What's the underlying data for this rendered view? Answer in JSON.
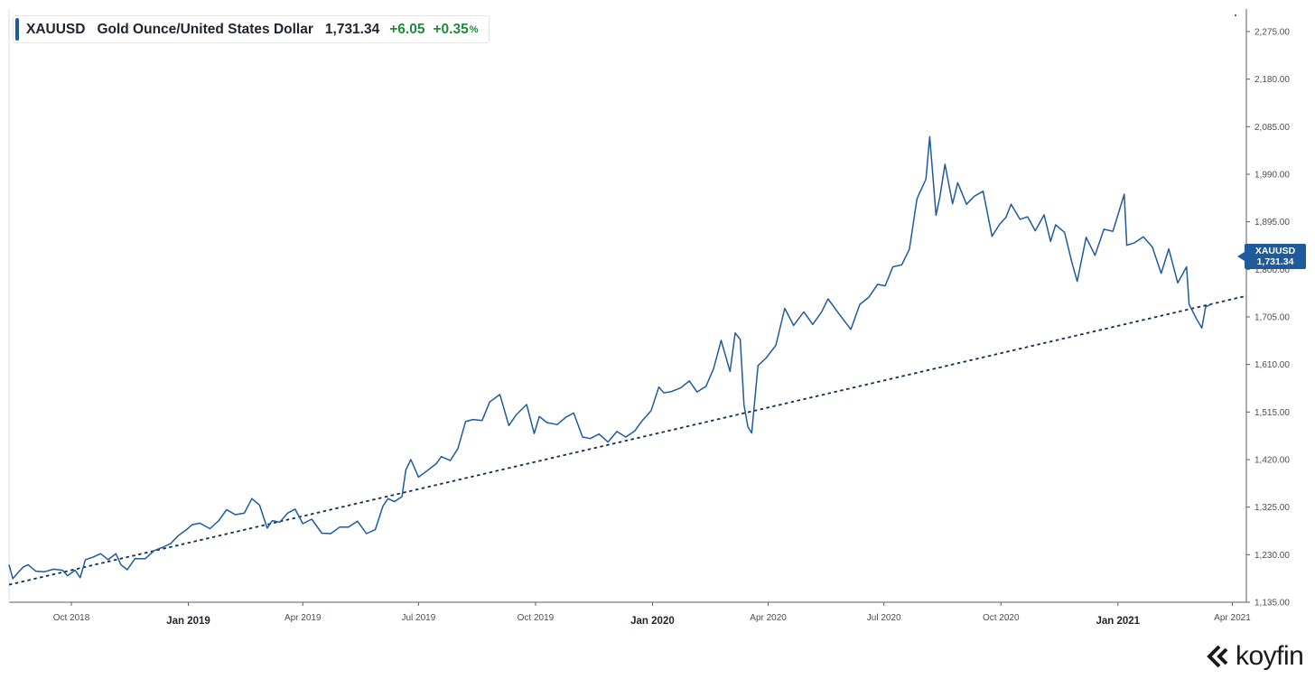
{
  "legend": {
    "ticker": "XAUUSD",
    "name": "Gold Ounce/United States Dollar",
    "price": "1,731.34",
    "change": "+6.05",
    "change_pct": "+0.35",
    "pct_sign": "%"
  },
  "badge": {
    "ticker": "XAUUSD",
    "price": "1,731.34"
  },
  "brand": {
    "name": "koyfin"
  },
  "colors": {
    "line": "#1f5a9c",
    "trend": "#0f2f4f",
    "positive": "#1f8a3a",
    "badge": "#1f5a9c"
  },
  "chart_data": {
    "type": "line",
    "grid": false,
    "ylim": [
      1135,
      2320
    ],
    "x_range": [
      "2018-08-13",
      "2021-04-12"
    ],
    "x_ticks": [
      {
        "date": "2018-10-01",
        "label": "Oct 2018",
        "major": false
      },
      {
        "date": "2019-01-01",
        "label": "Jan 2019",
        "major": true
      },
      {
        "date": "2019-04-01",
        "label": "Apr 2019",
        "major": false
      },
      {
        "date": "2019-07-01",
        "label": "Jul 2019",
        "major": false
      },
      {
        "date": "2019-10-01",
        "label": "Oct 2019",
        "major": false
      },
      {
        "date": "2020-01-01",
        "label": "Jan 2020",
        "major": true
      },
      {
        "date": "2020-04-01",
        "label": "Apr 2020",
        "major": false
      },
      {
        "date": "2020-07-01",
        "label": "Jul 2020",
        "major": false
      },
      {
        "date": "2020-10-01",
        "label": "Oct 2020",
        "major": false
      },
      {
        "date": "2021-01-01",
        "label": "Jan 2021",
        "major": true
      },
      {
        "date": "2021-04-01",
        "label": "Apr 2021",
        "major": false
      }
    ],
    "y_ticks": [
      {
        "value": 1135,
        "label": "1,135.00"
      },
      {
        "value": 1230,
        "label": "1,230.00"
      },
      {
        "value": 1325,
        "label": "1,325.00"
      },
      {
        "value": 1420,
        "label": "1,420.00"
      },
      {
        "value": 1515,
        "label": "1,515.00"
      },
      {
        "value": 1610,
        "label": "1,610.00"
      },
      {
        "value": 1705,
        "label": "1,705.00"
      },
      {
        "value": 1800,
        "label": "1,800.00"
      },
      {
        "value": 1895,
        "label": "1,895.00"
      },
      {
        "value": 1990,
        "label": "1,990.00"
      },
      {
        "value": 2085,
        "label": "2,085.00"
      },
      {
        "value": 2180,
        "label": "2,180.00"
      },
      {
        "value": 2275,
        "label": "2,275.00"
      }
    ],
    "series": [
      {
        "ticker": "XAUUSD",
        "points": [
          [
            "2018-08-13",
            1210
          ],
          [
            "2018-08-16",
            1182
          ],
          [
            "2018-08-20",
            1194
          ],
          [
            "2018-08-24",
            1205
          ],
          [
            "2018-08-28",
            1210
          ],
          [
            "2018-09-03",
            1197
          ],
          [
            "2018-09-10",
            1196
          ],
          [
            "2018-09-17",
            1201
          ],
          [
            "2018-09-24",
            1199
          ],
          [
            "2018-09-28",
            1188
          ],
          [
            "2018-10-04",
            1199
          ],
          [
            "2018-10-08",
            1184
          ],
          [
            "2018-10-12",
            1220
          ],
          [
            "2018-10-18",
            1225
          ],
          [
            "2018-10-24",
            1232
          ],
          [
            "2018-10-30",
            1220
          ],
          [
            "2018-11-05",
            1232
          ],
          [
            "2018-11-09",
            1210
          ],
          [
            "2018-11-14",
            1200
          ],
          [
            "2018-11-20",
            1222
          ],
          [
            "2018-11-28",
            1222
          ],
          [
            "2018-12-05",
            1238
          ],
          [
            "2018-12-12",
            1245
          ],
          [
            "2018-12-18",
            1252
          ],
          [
            "2018-12-24",
            1268
          ],
          [
            "2018-12-31",
            1281
          ],
          [
            "2019-01-04",
            1290
          ],
          [
            "2019-01-10",
            1293
          ],
          [
            "2019-01-18",
            1282
          ],
          [
            "2019-01-25",
            1298
          ],
          [
            "2019-01-31",
            1320
          ],
          [
            "2019-02-07",
            1310
          ],
          [
            "2019-02-14",
            1313
          ],
          [
            "2019-02-20",
            1342
          ],
          [
            "2019-02-26",
            1329
          ],
          [
            "2019-03-04",
            1283
          ],
          [
            "2019-03-08",
            1298
          ],
          [
            "2019-03-14",
            1295
          ],
          [
            "2019-03-20",
            1313
          ],
          [
            "2019-03-26",
            1321
          ],
          [
            "2019-04-01",
            1292
          ],
          [
            "2019-04-08",
            1301
          ],
          [
            "2019-04-16",
            1273
          ],
          [
            "2019-04-23",
            1272
          ],
          [
            "2019-04-30",
            1285
          ],
          [
            "2019-05-07",
            1285
          ],
          [
            "2019-05-14",
            1297
          ],
          [
            "2019-05-21",
            1272
          ],
          [
            "2019-05-28",
            1280
          ],
          [
            "2019-06-03",
            1327
          ],
          [
            "2019-06-07",
            1342
          ],
          [
            "2019-06-12",
            1336
          ],
          [
            "2019-06-18",
            1346
          ],
          [
            "2019-06-21",
            1399
          ],
          [
            "2019-06-25",
            1420
          ],
          [
            "2019-07-01",
            1385
          ],
          [
            "2019-07-08",
            1398
          ],
          [
            "2019-07-15",
            1412
          ],
          [
            "2019-07-19",
            1426
          ],
          [
            "2019-07-26",
            1418
          ],
          [
            "2019-08-01",
            1442
          ],
          [
            "2019-08-07",
            1496
          ],
          [
            "2019-08-13",
            1500
          ],
          [
            "2019-08-20",
            1498
          ],
          [
            "2019-08-26",
            1535
          ],
          [
            "2019-09-03",
            1550
          ],
          [
            "2019-09-10",
            1488
          ],
          [
            "2019-09-16",
            1510
          ],
          [
            "2019-09-24",
            1530
          ],
          [
            "2019-09-30",
            1472
          ],
          [
            "2019-10-04",
            1506
          ],
          [
            "2019-10-10",
            1494
          ],
          [
            "2019-10-18",
            1490
          ],
          [
            "2019-10-25",
            1505
          ],
          [
            "2019-10-31",
            1513
          ],
          [
            "2019-11-07",
            1465
          ],
          [
            "2019-11-13",
            1462
          ],
          [
            "2019-11-20",
            1471
          ],
          [
            "2019-11-27",
            1455
          ],
          [
            "2019-12-04",
            1476
          ],
          [
            "2019-12-11",
            1465
          ],
          [
            "2019-12-18",
            1477
          ],
          [
            "2019-12-24",
            1498
          ],
          [
            "2019-12-31",
            1518
          ],
          [
            "2020-01-06",
            1565
          ],
          [
            "2020-01-10",
            1553
          ],
          [
            "2020-01-16",
            1556
          ],
          [
            "2020-01-23",
            1563
          ],
          [
            "2020-01-30",
            1577
          ],
          [
            "2020-02-05",
            1555
          ],
          [
            "2020-02-12",
            1566
          ],
          [
            "2020-02-18",
            1601
          ],
          [
            "2020-02-24",
            1658
          ],
          [
            "2020-03-02",
            1596
          ],
          [
            "2020-03-06",
            1673
          ],
          [
            "2020-03-10",
            1660
          ],
          [
            "2020-03-13",
            1529
          ],
          [
            "2020-03-16",
            1485
          ],
          [
            "2020-03-19",
            1473
          ],
          [
            "2020-03-24",
            1608
          ],
          [
            "2020-03-30",
            1622
          ],
          [
            "2020-04-07",
            1648
          ],
          [
            "2020-04-14",
            1722
          ],
          [
            "2020-04-21",
            1688
          ],
          [
            "2020-04-29",
            1715
          ],
          [
            "2020-05-06",
            1690
          ],
          [
            "2020-05-13",
            1715
          ],
          [
            "2020-05-18",
            1741
          ],
          [
            "2020-05-27",
            1710
          ],
          [
            "2020-06-05",
            1680
          ],
          [
            "2020-06-12",
            1730
          ],
          [
            "2020-06-19",
            1744
          ],
          [
            "2020-06-26",
            1770
          ],
          [
            "2020-07-02",
            1767
          ],
          [
            "2020-07-08",
            1805
          ],
          [
            "2020-07-15",
            1809
          ],
          [
            "2020-07-21",
            1840
          ],
          [
            "2020-07-27",
            1941
          ],
          [
            "2020-08-03",
            1980
          ],
          [
            "2020-08-06",
            2065
          ],
          [
            "2020-08-11",
            1908
          ],
          [
            "2020-08-14",
            1945
          ],
          [
            "2020-08-18",
            2010
          ],
          [
            "2020-08-24",
            1931
          ],
          [
            "2020-08-28",
            1973
          ],
          [
            "2020-09-04",
            1930
          ],
          [
            "2020-09-10",
            1946
          ],
          [
            "2020-09-17",
            1956
          ],
          [
            "2020-09-24",
            1866
          ],
          [
            "2020-09-30",
            1890
          ],
          [
            "2020-10-05",
            1904
          ],
          [
            "2020-10-09",
            1930
          ],
          [
            "2020-10-16",
            1900
          ],
          [
            "2020-10-22",
            1905
          ],
          [
            "2020-10-28",
            1877
          ],
          [
            "2020-11-04",
            1909
          ],
          [
            "2020-11-09",
            1856
          ],
          [
            "2020-11-13",
            1889
          ],
          [
            "2020-11-20",
            1874
          ],
          [
            "2020-11-26",
            1812
          ],
          [
            "2020-11-30",
            1776
          ],
          [
            "2020-12-07",
            1864
          ],
          [
            "2020-12-14",
            1828
          ],
          [
            "2020-12-21",
            1880
          ],
          [
            "2020-12-28",
            1876
          ],
          [
            "2021-01-06",
            1950
          ],
          [
            "2021-01-08",
            1848
          ],
          [
            "2021-01-14",
            1853
          ],
          [
            "2021-01-21",
            1865
          ],
          [
            "2021-01-28",
            1845
          ],
          [
            "2021-02-04",
            1792
          ],
          [
            "2021-02-10",
            1841
          ],
          [
            "2021-02-17",
            1773
          ],
          [
            "2021-02-24",
            1805
          ],
          [
            "2021-02-26",
            1730
          ],
          [
            "2021-03-04",
            1700
          ],
          [
            "2021-03-08",
            1683
          ],
          [
            "2021-03-11",
            1725
          ],
          [
            "2021-03-16",
            1731
          ]
        ]
      }
    ],
    "trendline": {
      "points": [
        [
          "2018-08-13",
          1170
        ],
        [
          "2021-04-12",
          1747
        ]
      ],
      "style": "dotted"
    }
  }
}
